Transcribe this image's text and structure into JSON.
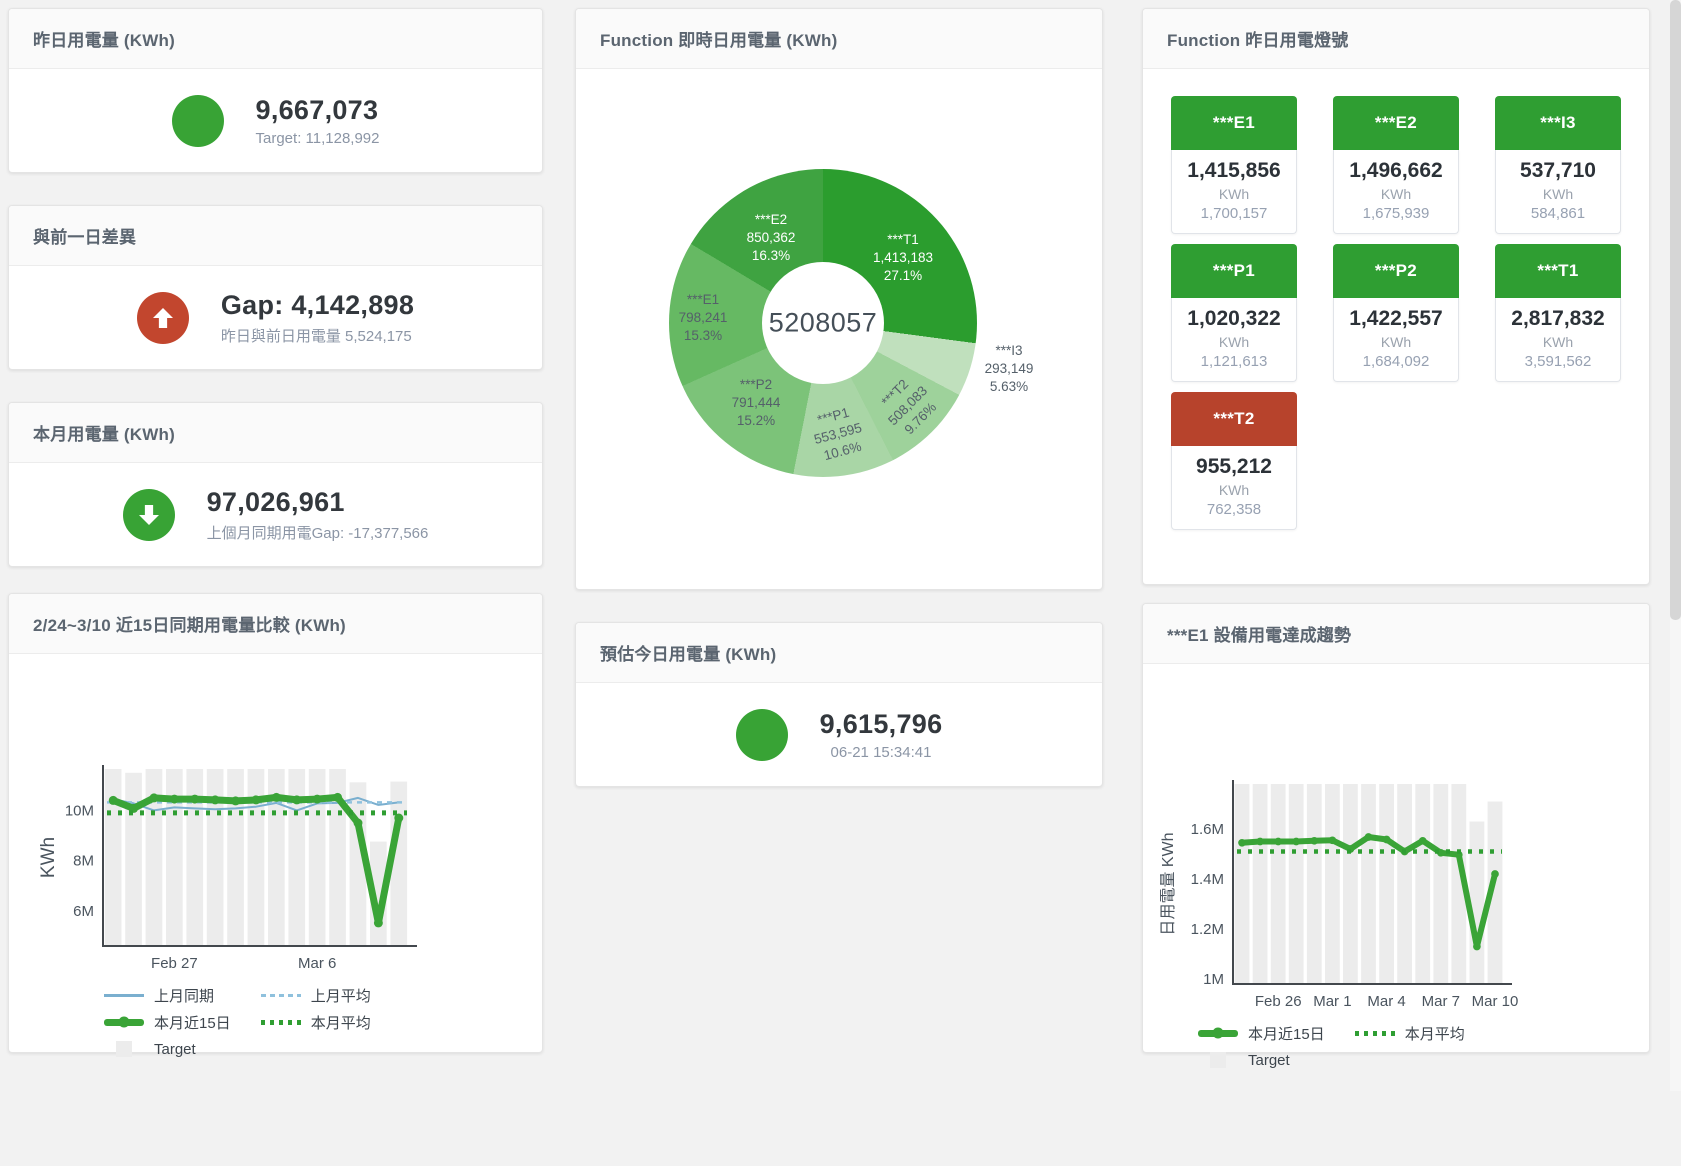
{
  "colors": {
    "green": "#38a335",
    "red": "#c2462e",
    "tile_green": "#2f9e32",
    "tile_red": "#b7432c",
    "bar_gray": "#ececec",
    "blue_line": "#7aafcf",
    "blue_dashed": "#8fc1dd",
    "green_line": "#3aa437",
    "green_dotted": "#2f9e32"
  },
  "cards": {
    "yesterday": {
      "title": "昨日用電量 (KWh)",
      "value": "9,667,073",
      "subtitle": "Target: 11,128,992"
    },
    "gap_prev_day": {
      "title": "與前一日差異",
      "value": "Gap: 4,142,898",
      "subtitle": "昨日與前日用電量 5,524,175",
      "direction": "up"
    },
    "month": {
      "title": "本月用電量 (KWh)",
      "value": "97,026,961",
      "subtitle": "上個月同期用電Gap: -17,377,566",
      "direction": "down"
    },
    "estimate": {
      "title": "預估今日用電量 (KWh)",
      "value": "9,615,796",
      "subtitle": "06-21 15:34:41"
    },
    "lights": {
      "title": "Function 昨日用電燈號",
      "unit": "KWh",
      "tiles": [
        {
          "name": "***E1",
          "value": "1,415,856",
          "target": "1,700,157",
          "status": "green"
        },
        {
          "name": "***E2",
          "value": "1,496,662",
          "target": "1,675,939",
          "status": "green"
        },
        {
          "name": "***I3",
          "value": "537,710",
          "target": "584,861",
          "status": "green"
        },
        {
          "name": "***P1",
          "value": "1,020,322",
          "target": "1,121,613",
          "status": "green"
        },
        {
          "name": "***P2",
          "value": "1,422,557",
          "target": "1,684,092",
          "status": "green"
        },
        {
          "name": "***T1",
          "value": "2,817,832",
          "target": "3,591,562",
          "status": "green"
        },
        {
          "name": "***T2",
          "value": "955,212",
          "target": "762,358",
          "status": "red"
        }
      ]
    }
  },
  "chart_data": [
    {
      "type": "pie",
      "title": "Function 即時日用電量 (KWh)",
      "center_total": "5208057",
      "slices": [
        {
          "name": "***T1",
          "value": "1,413,183",
          "pct": 27.1,
          "pct_label": "27.1%",
          "color": "#2b9d2e",
          "label_color": "#ffffff",
          "label_xy": [
            234,
            89
          ],
          "rotate": 0
        },
        {
          "name": "***I3",
          "value": "293,149",
          "pct": 5.63,
          "pct_label": "5.63%",
          "color": "#c0e0bd",
          "label_color": "#55606a",
          "label_xy": [
            340,
            200
          ],
          "rotate": 0
        },
        {
          "name": "***T2",
          "value": "508,083",
          "pct": 9.76,
          "pct_label": "9.76%",
          "color": "#9ed29b",
          "label_color": "#55606a",
          "label_xy": [
            239,
            237
          ],
          "rotate": -45
        },
        {
          "name": "***P1",
          "value": "553,595",
          "pct": 10.6,
          "pct_label": "10.6%",
          "color": "#a9d6a6",
          "label_color": "#55606a",
          "label_xy": [
            169,
            265
          ],
          "rotate": -15
        },
        {
          "name": "***P2",
          "value": "791,444",
          "pct": 15.2,
          "pct_label": "15.2%",
          "color": "#7cc379",
          "label_color": "#55606a",
          "label_xy": [
            87,
            234
          ],
          "rotate": 0
        },
        {
          "name": "***E1",
          "value": "798,241",
          "pct": 15.3,
          "pct_label": "15.3%",
          "color": "#66b963",
          "label_color": "#55606a",
          "label_xy": [
            34,
            149
          ],
          "rotate": 0
        },
        {
          "name": "***E2",
          "value": "850,362",
          "pct": 16.3,
          "pct_label": "16.3%",
          "color": "#3fa341",
          "label_color": "#ffffff",
          "label_xy": [
            102,
            69
          ],
          "rotate": 0
        }
      ]
    },
    {
      "type": "line",
      "title": "2/24~3/10 近15日同期用電量比較 (KWh)",
      "ylabel": "KWh",
      "ylim_m": [
        4.6,
        11.65
      ],
      "yticks_m": [
        6,
        8,
        10
      ],
      "ytick_labels": [
        "6M",
        "8M",
        "10M"
      ],
      "x_count": 15,
      "xticks": [
        {
          "i": 3,
          "label": "Feb 27"
        },
        {
          "i": 10,
          "label": "Mar 6"
        }
      ],
      "target_bars_m": [
        11.65,
        11.5,
        11.65,
        11.65,
        11.65,
        11.65,
        11.65,
        11.65,
        11.65,
        11.65,
        11.65,
        11.65,
        11.12,
        8.76,
        11.15
      ],
      "series": [
        {
          "name": "上月同期",
          "style": "solid",
          "color": "#7aafcf",
          "width": 2,
          "values_m": [
            10.45,
            10.28,
            10.0,
            10.12,
            10.08,
            10.05,
            10.08,
            10.15,
            10.3,
            10.0,
            10.28,
            10.3,
            10.5,
            10.22,
            10.32
          ]
        },
        {
          "name": "上月平均",
          "style": "dashed",
          "color": "#8fc1dd",
          "width": 2.5,
          "const_m": 10.32
        },
        {
          "name": "本月近15日",
          "style": "thick",
          "color": "#3aa437",
          "width": 7,
          "markers": true,
          "values_m": [
            10.4,
            10.08,
            10.5,
            10.45,
            10.45,
            10.42,
            10.38,
            10.42,
            10.52,
            10.42,
            10.45,
            10.52,
            9.5,
            5.52,
            9.7
          ]
        },
        {
          "name": "本月平均",
          "style": "dotted",
          "color": "#2f9e32",
          "width": 5,
          "const_m": 9.9
        }
      ],
      "target_legend": "Target",
      "legend_position": "bottom-left"
    },
    {
      "type": "line",
      "title": "***E1 設備用電達成趨勢",
      "ylabel": "日用電量 KWh",
      "ylim_m": [
        0.98,
        1.78
      ],
      "yticks_m": [
        1,
        1.2,
        1.4,
        1.6
      ],
      "ytick_labels": [
        "1M",
        "1.2M",
        "1.4M",
        "1.6M"
      ],
      "x_count": 15,
      "xticks": [
        {
          "i": 2,
          "label": "Feb 26"
        },
        {
          "i": 5,
          "label": "Mar 1"
        },
        {
          "i": 8,
          "label": "Mar 4"
        },
        {
          "i": 11,
          "label": "Mar 7"
        },
        {
          "i": 14,
          "label": "Mar 10"
        }
      ],
      "target_bars_m": [
        1.78,
        1.78,
        1.78,
        1.78,
        1.78,
        1.78,
        1.78,
        1.78,
        1.78,
        1.78,
        1.78,
        1.78,
        1.78,
        1.63,
        1.71
      ],
      "series": [
        {
          "name": "本月近15日",
          "style": "thick",
          "color": "#3aa437",
          "width": 6,
          "markers": true,
          "values_m": [
            1.545,
            1.55,
            1.55,
            1.55,
            1.553,
            1.555,
            1.52,
            1.568,
            1.558,
            1.51,
            1.553,
            1.505,
            1.497,
            1.13,
            1.42
          ]
        },
        {
          "name": "本月平均",
          "style": "dotted",
          "color": "#2f9e32",
          "width": 4.5,
          "const_m": 1.51
        }
      ],
      "target_legend": "Target",
      "legend_position": "bottom-left"
    }
  ]
}
